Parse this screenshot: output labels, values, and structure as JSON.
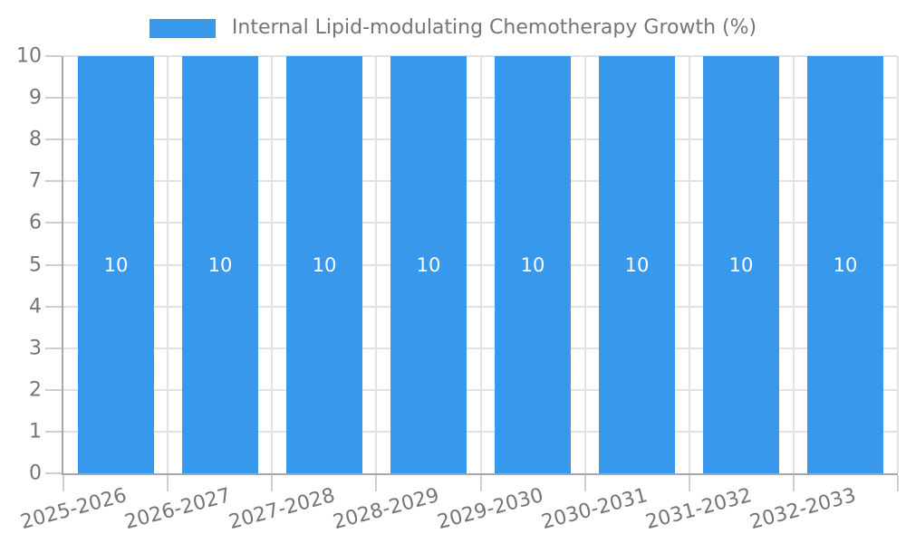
{
  "chart_data": {
    "type": "bar",
    "legend_label": "Internal Lipid-modulating Chemotherapy Growth (%)",
    "legend_position": "top",
    "categories": [
      "2025-2026",
      "2026-2027",
      "2027-2028",
      "2028-2029",
      "2029-2030",
      "2030-2031",
      "2031-2032",
      "2032-2033"
    ],
    "values": [
      10,
      10,
      10,
      10,
      10,
      10,
      10,
      10
    ],
    "bar_value_labels": [
      "10",
      "10",
      "10",
      "10",
      "10",
      "10",
      "10",
      "10"
    ],
    "ylim": [
      0,
      10
    ],
    "yticks": [
      0,
      1,
      2,
      3,
      4,
      5,
      6,
      7,
      8,
      9,
      10
    ],
    "grid": true,
    "colors": {
      "bar": "#3898EC",
      "bar_label": "#FFFFFF",
      "grid": "#E2E2E2",
      "axis_line": "#A6A6A6",
      "tick": "#CFCFCF",
      "tick_label": "#757575",
      "legend_text": "#757575"
    }
  }
}
